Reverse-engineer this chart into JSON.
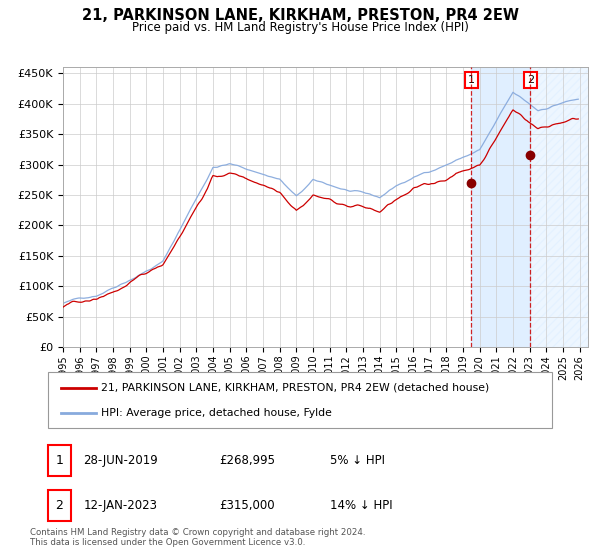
{
  "title": "21, PARKINSON LANE, KIRKHAM, PRESTON, PR4 2EW",
  "subtitle": "Price paid vs. HM Land Registry's House Price Index (HPI)",
  "ylim": [
    0,
    460000
  ],
  "yticks": [
    0,
    50000,
    100000,
    150000,
    200000,
    250000,
    300000,
    350000,
    400000,
    450000
  ],
  "ytick_labels": [
    "£0",
    "£50K",
    "£100K",
    "£150K",
    "£200K",
    "£250K",
    "£300K",
    "£350K",
    "£400K",
    "£450K"
  ],
  "sale1_price": 268995,
  "sale2_price": 315000,
  "sale1_year": 2019.5,
  "sale2_year": 2023.04,
  "line1_color": "#cc0000",
  "line2_color": "#88aadd",
  "marker_color": "#880000",
  "vline_color": "#cc0000",
  "shade_color": "#ddeeff",
  "grid_color": "#cccccc",
  "background_color": "#ffffff",
  "legend1": "21, PARKINSON LANE, KIRKHAM, PRESTON, PR4 2EW (detached house)",
  "legend2": "HPI: Average price, detached house, Fylde",
  "footnote1": "Contains HM Land Registry data © Crown copyright and database right 2024.",
  "footnote2": "This data is licensed under the Open Government Licence v3.0.",
  "x_start_year": 1995,
  "x_end_year": 2026
}
